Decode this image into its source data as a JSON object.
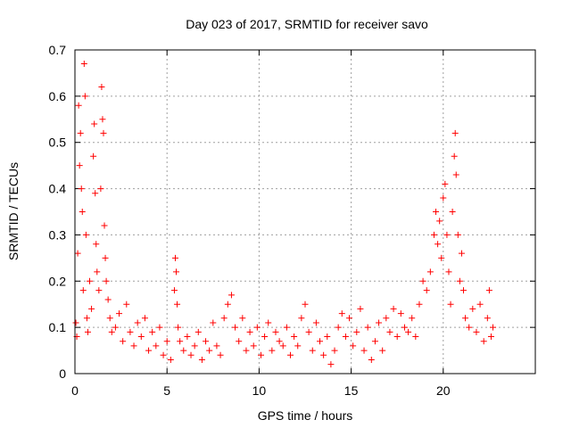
{
  "chart_data": {
    "type": "scatter",
    "title": "Day 023 of 2017, SRMTID for receiver savo",
    "xlabel": "GPS time / hours",
    "ylabel": "SRMTID / TECUs",
    "xlim": [
      0,
      25
    ],
    "ylim": [
      0,
      0.7
    ],
    "xticks": [
      0,
      5,
      10,
      15,
      20
    ],
    "xtick_labels": [
      "0",
      "5",
      "10",
      "15",
      "20"
    ],
    "yticks": [
      0,
      0.1,
      0.2,
      0.3,
      0.4,
      0.5,
      0.6,
      0.7
    ],
    "ytick_labels": [
      "0",
      "0.1",
      "0.2",
      "0.3",
      "0.4",
      "0.5",
      "0.6",
      "0.7"
    ],
    "grid": true,
    "legend": "none",
    "marker": "plus",
    "series": [
      {
        "name": "SRMTID",
        "color": "#ff0000",
        "points": [
          [
            0.05,
            0.11
          ],
          [
            0.1,
            0.08
          ],
          [
            0.15,
            0.26
          ],
          [
            0.2,
            0.58
          ],
          [
            0.25,
            0.45
          ],
          [
            0.3,
            0.52
          ],
          [
            0.35,
            0.4
          ],
          [
            0.4,
            0.35
          ],
          [
            0.45,
            0.18
          ],
          [
            0.5,
            0.67
          ],
          [
            0.55,
            0.6
          ],
          [
            0.6,
            0.3
          ],
          [
            0.65,
            0.12
          ],
          [
            0.7,
            0.09
          ],
          [
            0.8,
            0.2
          ],
          [
            0.9,
            0.14
          ],
          [
            1.0,
            0.47
          ],
          [
            1.05,
            0.54
          ],
          [
            1.1,
            0.39
          ],
          [
            1.15,
            0.28
          ],
          [
            1.2,
            0.22
          ],
          [
            1.3,
            0.18
          ],
          [
            1.4,
            0.4
          ],
          [
            1.45,
            0.62
          ],
          [
            1.5,
            0.55
          ],
          [
            1.55,
            0.52
          ],
          [
            1.6,
            0.32
          ],
          [
            1.65,
            0.25
          ],
          [
            1.7,
            0.2
          ],
          [
            1.8,
            0.16
          ],
          [
            1.9,
            0.12
          ],
          [
            2.0,
            0.09
          ],
          [
            2.2,
            0.1
          ],
          [
            2.4,
            0.13
          ],
          [
            2.6,
            0.07
          ],
          [
            2.8,
            0.15
          ],
          [
            3.0,
            0.09
          ],
          [
            3.2,
            0.06
          ],
          [
            3.4,
            0.11
          ],
          [
            3.6,
            0.08
          ],
          [
            3.8,
            0.12
          ],
          [
            4.0,
            0.05
          ],
          [
            4.2,
            0.09
          ],
          [
            4.4,
            0.06
          ],
          [
            4.6,
            0.1
          ],
          [
            4.8,
            0.04
          ],
          [
            5.0,
            0.07
          ],
          [
            5.2,
            0.03
          ],
          [
            5.4,
            0.18
          ],
          [
            5.45,
            0.25
          ],
          [
            5.5,
            0.22
          ],
          [
            5.55,
            0.15
          ],
          [
            5.6,
            0.1
          ],
          [
            5.7,
            0.07
          ],
          [
            5.9,
            0.05
          ],
          [
            6.1,
            0.08
          ],
          [
            6.3,
            0.04
          ],
          [
            6.5,
            0.06
          ],
          [
            6.7,
            0.09
          ],
          [
            6.9,
            0.03
          ],
          [
            7.1,
            0.07
          ],
          [
            7.3,
            0.05
          ],
          [
            7.5,
            0.11
          ],
          [
            7.7,
            0.06
          ],
          [
            7.9,
            0.04
          ],
          [
            8.1,
            0.12
          ],
          [
            8.3,
            0.15
          ],
          [
            8.5,
            0.17
          ],
          [
            8.7,
            0.1
          ],
          [
            8.9,
            0.07
          ],
          [
            9.1,
            0.12
          ],
          [
            9.3,
            0.05
          ],
          [
            9.5,
            0.09
          ],
          [
            9.7,
            0.06
          ],
          [
            9.9,
            0.1
          ],
          [
            10.1,
            0.04
          ],
          [
            10.3,
            0.08
          ],
          [
            10.5,
            0.11
          ],
          [
            10.7,
            0.05
          ],
          [
            10.9,
            0.09
          ],
          [
            11.1,
            0.07
          ],
          [
            11.3,
            0.06
          ],
          [
            11.5,
            0.1
          ],
          [
            11.7,
            0.04
          ],
          [
            11.9,
            0.08
          ],
          [
            12.1,
            0.06
          ],
          [
            12.3,
            0.12
          ],
          [
            12.5,
            0.15
          ],
          [
            12.7,
            0.09
          ],
          [
            12.9,
            0.05
          ],
          [
            13.1,
            0.11
          ],
          [
            13.3,
            0.07
          ],
          [
            13.5,
            0.04
          ],
          [
            13.7,
            0.08
          ],
          [
            13.9,
            0.02
          ],
          [
            14.1,
            0.05
          ],
          [
            14.3,
            0.1
          ],
          [
            14.5,
            0.13
          ],
          [
            14.7,
            0.08
          ],
          [
            14.9,
            0.12
          ],
          [
            15.1,
            0.06
          ],
          [
            15.3,
            0.09
          ],
          [
            15.5,
            0.14
          ],
          [
            15.7,
            0.05
          ],
          [
            15.9,
            0.1
          ],
          [
            16.1,
            0.03
          ],
          [
            16.3,
            0.07
          ],
          [
            16.5,
            0.11
          ],
          [
            16.7,
            0.05
          ],
          [
            16.9,
            0.12
          ],
          [
            17.1,
            0.09
          ],
          [
            17.3,
            0.14
          ],
          [
            17.5,
            0.08
          ],
          [
            17.7,
            0.13
          ],
          [
            17.9,
            0.1
          ],
          [
            18.1,
            0.09
          ],
          [
            18.3,
            0.12
          ],
          [
            18.5,
            0.08
          ],
          [
            18.7,
            0.15
          ],
          [
            18.9,
            0.2
          ],
          [
            19.1,
            0.18
          ],
          [
            19.3,
            0.22
          ],
          [
            19.5,
            0.3
          ],
          [
            19.6,
            0.35
          ],
          [
            19.7,
            0.28
          ],
          [
            19.8,
            0.33
          ],
          [
            19.9,
            0.25
          ],
          [
            20.0,
            0.38
          ],
          [
            20.1,
            0.41
          ],
          [
            20.2,
            0.3
          ],
          [
            20.3,
            0.22
          ],
          [
            20.4,
            0.15
          ],
          [
            20.5,
            0.35
          ],
          [
            20.6,
            0.47
          ],
          [
            20.65,
            0.52
          ],
          [
            20.7,
            0.43
          ],
          [
            20.8,
            0.3
          ],
          [
            20.9,
            0.2
          ],
          [
            21.0,
            0.26
          ],
          [
            21.1,
            0.18
          ],
          [
            21.2,
            0.12
          ],
          [
            21.4,
            0.1
          ],
          [
            21.6,
            0.14
          ],
          [
            21.8,
            0.09
          ],
          [
            22.0,
            0.15
          ],
          [
            22.2,
            0.07
          ],
          [
            22.4,
            0.12
          ],
          [
            22.5,
            0.18
          ],
          [
            22.6,
            0.08
          ],
          [
            22.7,
            0.1
          ]
        ]
      }
    ]
  }
}
